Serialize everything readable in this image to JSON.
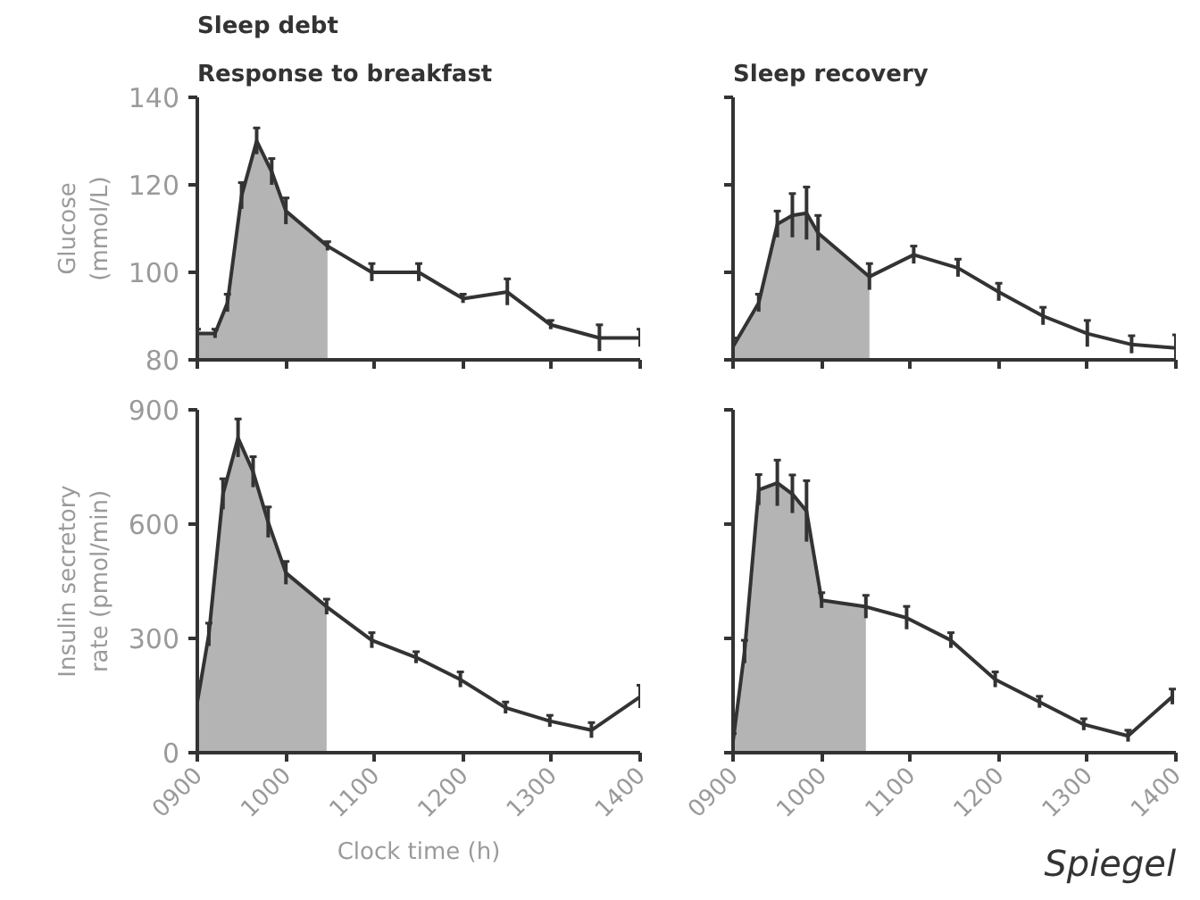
{
  "chart_data": [
    {
      "type": "line",
      "title": "Sleep debt",
      "subtitle": "Response to breakfast",
      "ylabel": "Glucose\n(mmol/L)",
      "xlim": [
        900,
        1400
      ],
      "ylim": [
        80,
        140
      ],
      "xticks": [
        900,
        1000,
        1100,
        1200,
        1300,
        1400
      ],
      "yticks": [
        80,
        100,
        120,
        140
      ],
      "tick_labels": "y",
      "grid": false,
      "marker": "none",
      "line_style": "solid",
      "series": [
        {
          "type": "area",
          "color": "#b4b4b4",
          "x": [
            900,
            920,
            934,
            950,
            967,
            984,
            1000,
            1047
          ],
          "values": [
            86,
            86,
            93,
            117.5,
            130,
            123,
            114,
            106
          ]
        },
        {
          "color": "#333333",
          "x": [
            900,
            920,
            934,
            950,
            967,
            984,
            1000,
            1047,
            1097,
            1150,
            1200,
            1250,
            1299,
            1354,
            1400
          ],
          "values": [
            86,
            86,
            93,
            117.5,
            130,
            123,
            114,
            106,
            100,
            100,
            94,
            95.5,
            88,
            85,
            85
          ],
          "errors": [
            1,
            1,
            2,
            3,
            3,
            3,
            3,
            1,
            2,
            2,
            1,
            3,
            1,
            3,
            2
          ]
        }
      ]
    },
    {
      "type": "line",
      "title": "Sleep recovery",
      "xlim": [
        900,
        1400
      ],
      "ylim": [
        80,
        140
      ],
      "xticks": [
        900,
        1000,
        1100,
        1200,
        1300,
        1400
      ],
      "yticks": [
        80,
        100,
        120,
        140
      ],
      "tick_labels": false,
      "grid": false,
      "marker": "none",
      "line_style": "solid",
      "series": [
        {
          "type": "area",
          "color": "#b4b4b4",
          "x": [
            900,
            929,
            950,
            967,
            983,
            996,
            1054
          ],
          "values": [
            83,
            93,
            111,
            113,
            113.5,
            109,
            99
          ]
        },
        {
          "color": "#333333",
          "x": [
            900,
            929,
            950,
            967,
            983,
            996,
            1054,
            1104,
            1154,
            1200,
            1250,
            1300,
            1350,
            1400
          ],
          "values": [
            83,
            93,
            111,
            113,
            113.5,
            109,
            99,
            104,
            101,
            95.5,
            90,
            86,
            83.5,
            82.7
          ],
          "errors": [
            2,
            2,
            3,
            5,
            6,
            4,
            3,
            2,
            2,
            2,
            2,
            3,
            2,
            3
          ]
        }
      ]
    },
    {
      "type": "line",
      "ylabel": "Insulin secretory\nrate (pmol/min)",
      "xlabel": "Clock time (h)",
      "xlim": [
        900,
        1400
      ],
      "ylim": [
        0,
        900
      ],
      "xticks": [
        {
          "value": 900,
          "label": "0900"
        },
        1000,
        1100,
        1200,
        1300,
        1400
      ],
      "yticks": [
        0,
        300,
        600,
        900
      ],
      "grid": false,
      "marker": "none",
      "line_style": "solid",
      "series": [
        {
          "type": "area",
          "color": "#b4b4b4",
          "x": [
            900,
            913,
            929,
            946,
            963,
            980,
            1000,
            1046
          ],
          "values": [
            133,
            310,
            679,
            826,
            737,
            605,
            472,
            383
          ]
        },
        {
          "color": "#333333",
          "x": [
            900,
            913,
            929,
            946,
            963,
            980,
            1000,
            1046,
            1097,
            1147,
            1197,
            1248,
            1298,
            1345,
            1400
          ],
          "values": [
            133,
            310,
            679,
            826,
            737,
            605,
            472,
            383,
            295,
            250,
            192,
            118,
            83,
            59,
            147
          ],
          "errors": [
            40,
            30,
            40,
            50,
            40,
            40,
            30,
            20,
            20,
            15,
            20,
            15,
            15,
            20,
            30
          ]
        }
      ]
    },
    {
      "type": "line",
      "xlim": [
        900,
        1400
      ],
      "ylim": [
        0,
        900
      ],
      "xticks": [
        {
          "value": 900,
          "label": "0900"
        },
        1000,
        1100,
        1200,
        1300,
        1400
      ],
      "yticks": [
        0,
        300,
        600,
        900
      ],
      "tick_labels": "x",
      "grid": false,
      "marker": "none",
      "line_style": "solid",
      "annotations": [
        "Spiegel"
      ],
      "series": [
        {
          "type": "area",
          "color": "#b4b4b4",
          "x": [
            900,
            913,
            929,
            950,
            967,
            983,
            1000,
            1050
          ],
          "values": [
            30,
            265,
            690,
            708,
            679,
            634,
            400,
            383
          ]
        },
        {
          "color": "#333333",
          "x": [
            900,
            913,
            929,
            950,
            967,
            983,
            1000,
            1050,
            1096,
            1146,
            1196,
            1246,
            1296,
            1346,
            1396
          ],
          "values": [
            30,
            265,
            690,
            708,
            679,
            634,
            400,
            383,
            354,
            295,
            192,
            133,
            74,
            44,
            147
          ],
          "errors": [
            20,
            30,
            40,
            60,
            50,
            80,
            20,
            30,
            30,
            20,
            20,
            15,
            15,
            15,
            20
          ]
        }
      ]
    }
  ]
}
